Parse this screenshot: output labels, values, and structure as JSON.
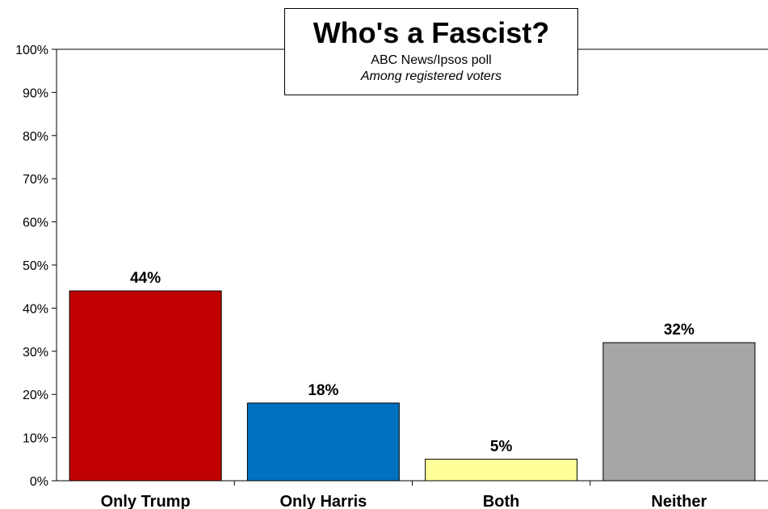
{
  "chart_data": {
    "type": "bar",
    "title": "Who's a Fascist?",
    "subtitle": "ABC News/Ipsos poll",
    "subtitle2": "Among registered voters",
    "categories": [
      "Only Trump",
      "Only Harris",
      "Both",
      "Neither"
    ],
    "values": [
      44,
      18,
      5,
      32
    ],
    "value_labels": [
      "44%",
      "18%",
      "5%",
      "32%"
    ],
    "colors": [
      "#c00000",
      "#0070c0",
      "#ffff99",
      "#a6a6a6"
    ],
    "ylim": [
      0,
      100
    ],
    "yticks": [
      "0%",
      "10%",
      "20%",
      "30%",
      "40%",
      "50%",
      "60%",
      "70%",
      "80%",
      "90%",
      "100%"
    ],
    "xlabel": "",
    "ylabel": "",
    "grid": false
  }
}
